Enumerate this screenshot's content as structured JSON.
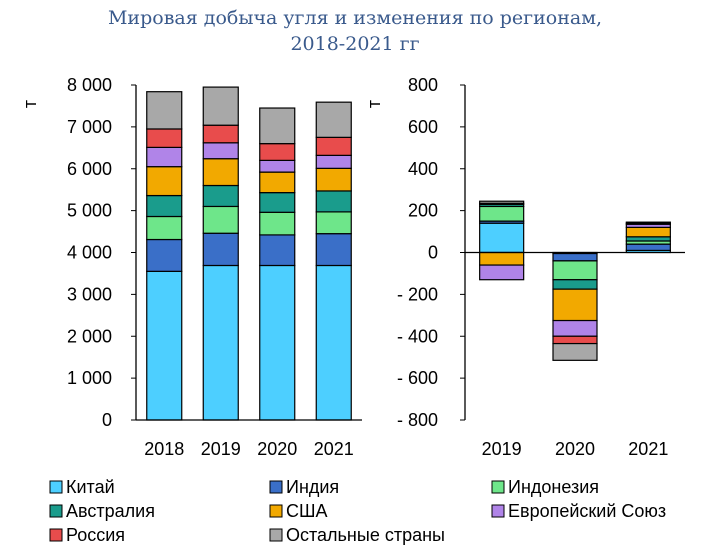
{
  "title_lines": [
    "Мировая добыча угля и изменения по регионам,",
    "2018-2021 гг"
  ],
  "chart_data": [
    {
      "type": "bar",
      "stacked": true,
      "panel": "left",
      "ylabel": "т",
      "ylim": [
        0,
        8000
      ],
      "yticks": [
        0,
        1000,
        2000,
        3000,
        4000,
        5000,
        6000,
        7000,
        8000
      ],
      "ytick_labels": [
        "0",
        "1 000",
        "2 000",
        "3 000",
        "4 000",
        "5 000",
        "6 000",
        "7 000",
        "8 000"
      ],
      "categories": [
        "2018",
        "2019",
        "2020",
        "2021"
      ],
      "series": [
        {
          "name": "Китай",
          "color": "#4dcfff",
          "values": [
            3550,
            3690,
            3690,
            3690
          ]
        },
        {
          "name": "Индия",
          "color": "#3a6fc8",
          "values": [
            760,
            770,
            730,
            760
          ]
        },
        {
          "name": "Индонезия",
          "color": "#6ee68a",
          "values": [
            550,
            640,
            540,
            520
          ]
        },
        {
          "name": "Австралия",
          "color": "#1a9c8c",
          "values": [
            500,
            500,
            470,
            500
          ]
        },
        {
          "name": "США",
          "color": "#f2a900",
          "values": [
            690,
            640,
            490,
            540
          ]
        },
        {
          "name": "Европейский Союз",
          "color": "#b084e8",
          "values": [
            460,
            380,
            280,
            310
          ]
        },
        {
          "name": "Россия",
          "color": "#e84c4c",
          "values": [
            440,
            420,
            400,
            430
          ]
        },
        {
          "name": "Остальные страны",
          "color": "#a8a8a8",
          "values": [
            890,
            910,
            850,
            840
          ]
        }
      ]
    },
    {
      "type": "bar",
      "stacked": true,
      "panel": "right",
      "ylabel": "т",
      "ylim": [
        -800,
        800
      ],
      "yticks": [
        -800,
        -600,
        -400,
        -200,
        0,
        200,
        400,
        600,
        800
      ],
      "ytick_labels": [
        "- 800",
        "- 600",
        "- 400",
        "- 200",
        "0",
        "200",
        "400",
        "600",
        "800"
      ],
      "categories": [
        "2019",
        "2020",
        "2021"
      ],
      "series": [
        {
          "name": "Китай",
          "color": "#4dcfff",
          "values": [
            140,
            -5,
            10
          ]
        },
        {
          "name": "Индия",
          "color": "#3a6fc8",
          "values": [
            10,
            -35,
            30
          ]
        },
        {
          "name": "Индонезия",
          "color": "#6ee68a",
          "values": [
            70,
            -90,
            15
          ]
        },
        {
          "name": "Австралия",
          "color": "#1a9c8c",
          "values": [
            10,
            -45,
            20
          ]
        },
        {
          "name": "США",
          "color": "#f2a900",
          "values": [
            -60,
            -150,
            45
          ]
        },
        {
          "name": "Европейский Союз",
          "color": "#b084e8",
          "values": [
            -70,
            -75,
            15
          ]
        },
        {
          "name": "Россия",
          "color": "#e84c4c",
          "values": [
            5,
            -35,
            5
          ]
        },
        {
          "name": "Остальные страны",
          "color": "#a8a8a8",
          "values": [
            10,
            -80,
            5
          ]
        }
      ]
    }
  ]
}
